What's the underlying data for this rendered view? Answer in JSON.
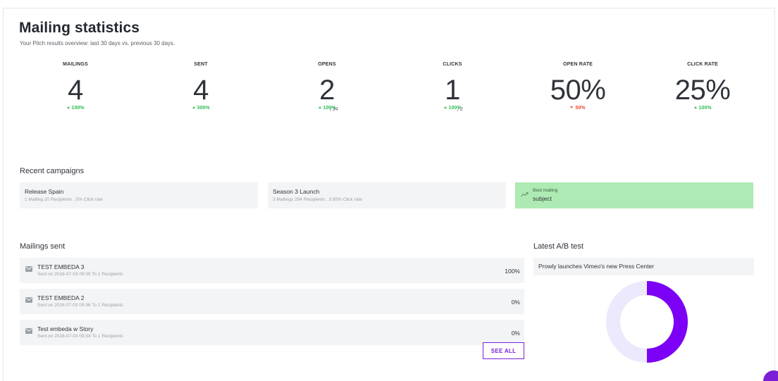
{
  "header": {
    "title": "Mailing statistics",
    "subtitle": "Your Pitch results overview: last 30 days vs. previous 30 days."
  },
  "stats": [
    {
      "label": "MAILINGS",
      "value": "4",
      "sub": "",
      "change": "100%",
      "direction": "up"
    },
    {
      "label": "SENT",
      "value": "4",
      "sub": "",
      "change": "300%",
      "direction": "up"
    },
    {
      "label": "OPENS",
      "value": "2",
      "sub": "/ 24",
      "change": "100%",
      "direction": "up"
    },
    {
      "label": "CLICKS",
      "value": "1",
      "sub": "/ 2",
      "change": "100%",
      "direction": "up"
    },
    {
      "label": "OPEN RATE",
      "value": "50%",
      "sub": "",
      "change": "50%",
      "direction": "down"
    },
    {
      "label": "CLICK RATE",
      "value": "25%",
      "sub": "",
      "change": "100%",
      "direction": "up"
    }
  ],
  "recent": {
    "title": "Recent campaigns",
    "campaigns": [
      {
        "name": "Release Spain",
        "meta": "1 Mailing 20 Recipients , 5% Click rate"
      },
      {
        "name": "Season 3 Launch",
        "meta": "3 Mailings 294 Recipients , 3.85% Click rate"
      }
    ],
    "best": {
      "label": "Best mailing",
      "subject": "subject",
      "icon": "trending-up-icon"
    }
  },
  "mailings": {
    "title": "Mailings sent",
    "items": [
      {
        "name": "TEST EMBEDA 3",
        "meta": "Sent on 2018-07-03 09:39 To 1 Recipients",
        "pct": "100%",
        "icon": "envelope-icon"
      },
      {
        "name": "TEST EMBEDA 2",
        "meta": "Sent on 2018-07-03 09:36 To 1 Recipients",
        "pct": "0%",
        "icon": "envelope-icon"
      },
      {
        "name": "Test embeda w Story",
        "meta": "Sent on 2018-07-03 09:34 To 1 Recipients",
        "pct": "0%",
        "icon": "envelope-icon"
      }
    ],
    "see_all": "SEE ALL"
  },
  "ab_test": {
    "title": "Latest A/B test",
    "subject": "Prowly launches Vimeo's new Press Center",
    "split": [
      0.5,
      0.5
    ],
    "colors": {
      "a": "#7b00f5",
      "b": "#ebe9fb"
    }
  },
  "colors": {
    "accent": "#7b1fd6",
    "up": "#2fbf55",
    "down": "#e9523a",
    "best": "#aeeab3"
  }
}
